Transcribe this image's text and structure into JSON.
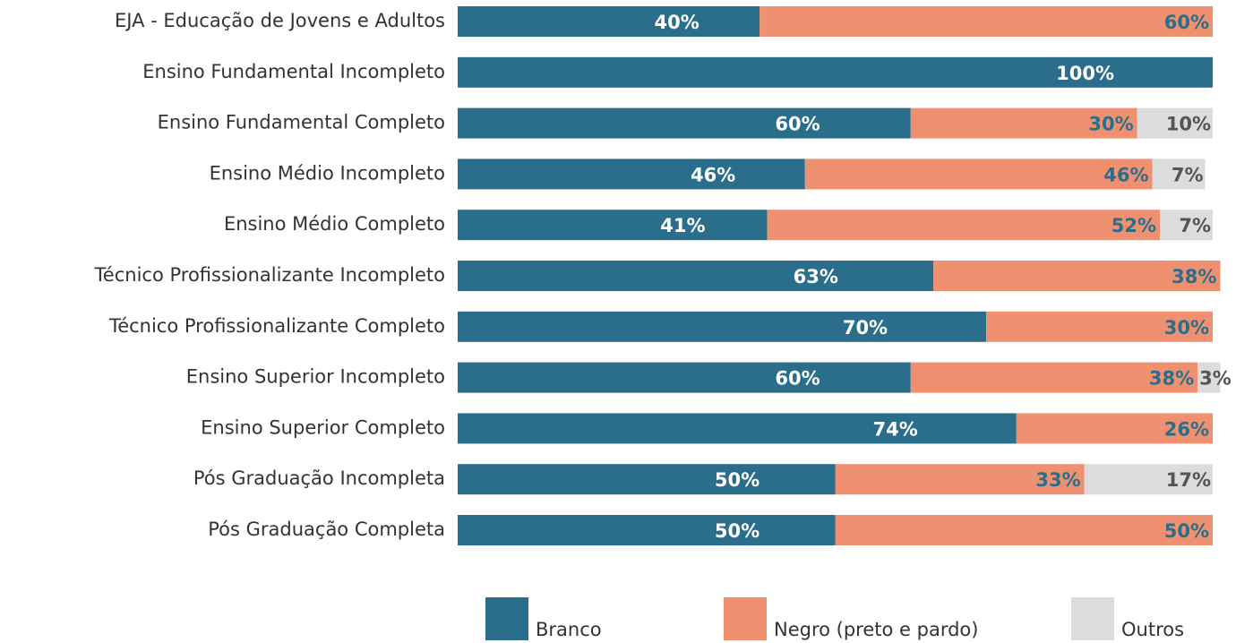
{
  "chart_data": {
    "type": "stacked_bar_horizontal",
    "categories": [
      "EJA - Educação de Jovens e Adultos",
      "Ensino Fundamental Incompleto",
      "Ensino Fundamental Completo",
      "Ensino Médio Incompleto",
      "Ensino Médio Completo",
      "Técnico Profissionalizante Incompleto",
      "Técnico Profissionalizante Completo",
      "Ensino Superior Incompleto",
      "Ensino Superior Completo",
      "Pós Graduação Incompleta",
      "Pós Graduação Completa"
    ],
    "xlim": [
      0,
      100
    ],
    "series": [
      {
        "name": "Branco",
        "color": "#2b6e8c",
        "label_color": "#ffffff",
        "values": [
          40,
          100,
          60,
          46,
          41,
          63,
          70,
          60,
          74,
          50,
          50
        ],
        "value_labels": [
          "40%",
          "100%",
          "60%",
          "46%",
          "41%",
          "63%",
          "70%",
          "60%",
          "74%",
          "50%",
          "50%"
        ]
      },
      {
        "name": "Negro (preto e pardo)",
        "color": "#ef9170",
        "label_color": "#2b6e8c",
        "values": [
          60,
          null,
          30,
          46,
          52,
          38,
          30,
          38,
          26,
          33,
          50
        ],
        "value_labels": [
          "60%",
          null,
          "30%",
          "46%",
          "52%",
          "38%",
          "30%",
          "38%",
          "26%",
          "33%",
          "50%"
        ]
      },
      {
        "name": "Outros",
        "color": "#dcdcdc",
        "label_color": "#555555",
        "values": [
          null,
          null,
          10,
          7,
          7,
          null,
          null,
          3,
          null,
          17,
          null
        ],
        "value_labels": [
          null,
          null,
          "10%",
          "7%",
          "7%",
          null,
          null,
          "3%",
          null,
          "17%",
          null
        ]
      }
    ],
    "legend": "bottom"
  }
}
